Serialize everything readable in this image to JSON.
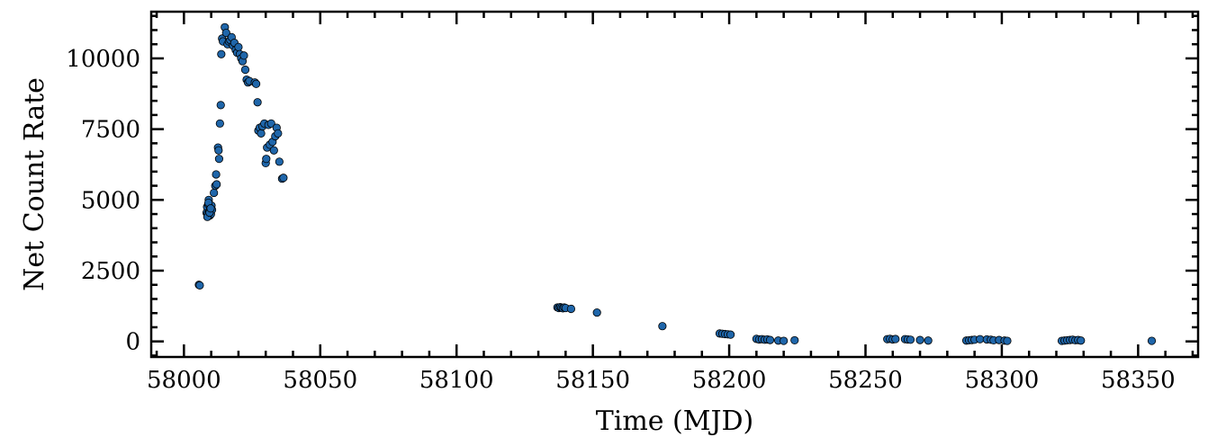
{
  "chart_data": {
    "type": "scatter",
    "xlabel": "Time (MJD)",
    "ylabel": "Net Count Rate",
    "xlim": [
      57988,
      58372
    ],
    "ylim": [
      -550,
      11650
    ],
    "xticks": [
      58000,
      58050,
      58100,
      58150,
      58200,
      58250,
      58300,
      58350
    ],
    "xtick_labels": [
      "58000",
      "58050",
      "58100",
      "58150",
      "58200",
      "58250",
      "58300",
      "58350"
    ],
    "yticks": [
      0,
      2500,
      5000,
      7500,
      10000
    ],
    "ytick_labels": [
      "0",
      "2500",
      "5000",
      "7500",
      "10000"
    ],
    "grid": false,
    "marker_color": "#1f66aa",
    "marker_edge_color": "#000000",
    "series": [
      {
        "x": [
          58005.5,
          58005.8,
          58008.3,
          58008.5,
          58008.7,
          58008.9,
          58009.1,
          58009.3,
          58009.5,
          58009.7,
          58009.9,
          58010.1,
          58010.3,
          58008.6,
          58009.0,
          58009.4,
          58009.8,
          58011.0,
          58011.5,
          58011.8,
          58012.0,
          58012.5,
          58012.7,
          58012.9,
          58013.2,
          58013.5,
          58013.7,
          58014.0,
          58014.3,
          58015.0,
          58015.5,
          58016.0,
          58016.5,
          58017.0,
          58017.5,
          58018.0,
          58018.5,
          58019.0,
          58019.5,
          58020.0,
          58020.5,
          58021.0,
          58021.5,
          58022.0,
          58022.5,
          58023.0,
          58023.5,
          58024.0,
          58026.0,
          58026.5,
          58027.0,
          58027.3,
          58027.8,
          58028.3,
          58028.8,
          58029.5,
          58030.0,
          58030.2,
          58030.5,
          58031.0,
          58031.5,
          58032.0,
          58032.5,
          58033.0,
          58033.5,
          58034.0,
          58034.5,
          58035.0,
          58036.0,
          58036.5,
          58137.0,
          58137.5,
          58138.0,
          58138.5,
          58139.0,
          58139.5,
          58140.0,
          58142.0,
          58151.5,
          58175.5,
          58196.5,
          58197.5,
          58198.5,
          58199.5,
          58200.5,
          58210.0,
          58211.0,
          58212.0,
          58213.0,
          58214.0,
          58215.0,
          58218.0,
          58220.0,
          58224.0,
          58258.0,
          58259.0,
          58260.0,
          58261.0,
          58264.5,
          58265.5,
          58266.5,
          58270.0,
          58273.0,
          58287.0,
          58288.0,
          58289.0,
          58290.0,
          58292.0,
          58294.5,
          58296.0,
          58297.0,
          58299.0,
          58301.0,
          58302.0,
          58322.0,
          58323.0,
          58324.0,
          58325.0,
          58326.0,
          58327.0,
          58328.0,
          58329.0,
          58355.0
        ],
        "y": [
          2000,
          1980,
          4550,
          4750,
          4500,
          4850,
          5000,
          4600,
          4450,
          4700,
          4500,
          4800,
          4650,
          4400,
          4900,
          4550,
          4700,
          5250,
          5500,
          5900,
          5550,
          6850,
          6750,
          6450,
          7700,
          8350,
          10150,
          10700,
          10600,
          11100,
          10900,
          10500,
          10600,
          10650,
          10750,
          10450,
          10550,
          10300,
          10200,
          10400,
          10150,
          10000,
          9900,
          10100,
          9600,
          9250,
          9150,
          9200,
          9150,
          9100,
          8450,
          7450,
          7550,
          7350,
          7600,
          7700,
          6300,
          6450,
          6850,
          7650,
          6950,
          7700,
          7050,
          6750,
          7250,
          7550,
          7350,
          6350,
          5750,
          5780,
          1200,
          1180,
          1210,
          1190,
          1170,
          1200,
          1180,
          1150,
          1020,
          540,
          280,
          270,
          260,
          250,
          240,
          90,
          70,
          80,
          60,
          70,
          50,
          30,
          20,
          40,
          80,
          90,
          70,
          85,
          80,
          70,
          60,
          50,
          30,
          30,
          40,
          50,
          60,
          80,
          70,
          60,
          40,
          50,
          30,
          20,
          20,
          30,
          40,
          50,
          60,
          40,
          50,
          30,
          20
        ]
      }
    ]
  }
}
